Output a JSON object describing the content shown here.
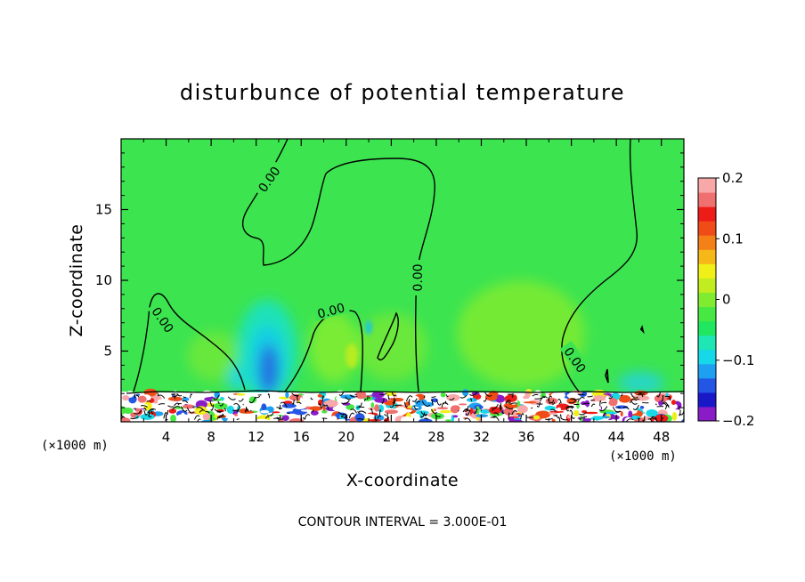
{
  "chart_data": {
    "type": "heatmap",
    "title": "disturbunce of potential temperature",
    "xlabel": "X-coordinate",
    "ylabel": "Z-coordinate",
    "x_unit": "(×1000 m)",
    "y_unit": "(×1000 m)",
    "xlim": [
      0,
      50
    ],
    "ylim": [
      0,
      20
    ],
    "x_ticks": [
      4,
      8,
      12,
      16,
      20,
      24,
      28,
      32,
      36,
      40,
      44,
      48
    ],
    "y_ticks": [
      5,
      10,
      15
    ],
    "colorbar": {
      "range": [
        -0.2,
        0.2
      ],
      "tick_values": [
        -0.2,
        -0.1,
        0,
        0.1,
        0.2
      ],
      "tick_labels": [
        "−0.2",
        "−0.1",
        "0",
        "0.1",
        "0.2"
      ],
      "colors": [
        "#8a1cc8",
        "#1818c8",
        "#2456e6",
        "#1ea0f0",
        "#16d8e8",
        "#1ee6b4",
        "#20e660",
        "#48e844",
        "#80ec30",
        "#c0ec20",
        "#f0f018",
        "#f6b818",
        "#f48018",
        "#f04c18",
        "#ee1c18",
        "#f07070",
        "#f8a8a8"
      ]
    },
    "contour_labels": [
      "0.00",
      "0.00",
      "0.00",
      "0.00",
      "0.00"
    ],
    "footnote": "CONTOUR INTERVAL = 3.000E-01"
  }
}
